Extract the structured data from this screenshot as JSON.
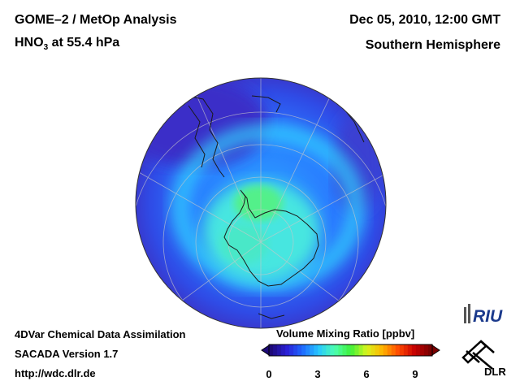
{
  "header": {
    "instrument": "GOME–2 / MetOp Analysis",
    "species": "HNO",
    "species_sub": "3",
    "level": "at 55.4 hPa",
    "datetime": "Dec 05, 2010, 12:00 GMT",
    "region": "Southern Hemisphere"
  },
  "footer": {
    "line1": "4DVar Chemical Data Assimilation",
    "line2": "SACADA Version 1.7",
    "line3": "http://wdc.dlr.de"
  },
  "colorbar": {
    "label": "Volume Mixing Ratio [ppbv]",
    "min": 0,
    "max": 10,
    "ticks": [
      "0",
      "3",
      "6",
      "9"
    ],
    "colors": [
      "#1e0a78",
      "#2a1fd6",
      "#1f6bff",
      "#28c8ff",
      "#4dffb0",
      "#3ef03a",
      "#d6f51e",
      "#ffb400",
      "#ff4a00",
      "#c80000",
      "#7a0000"
    ]
  },
  "logos": {
    "riu": "RIU",
    "dlr": "DLR"
  }
}
